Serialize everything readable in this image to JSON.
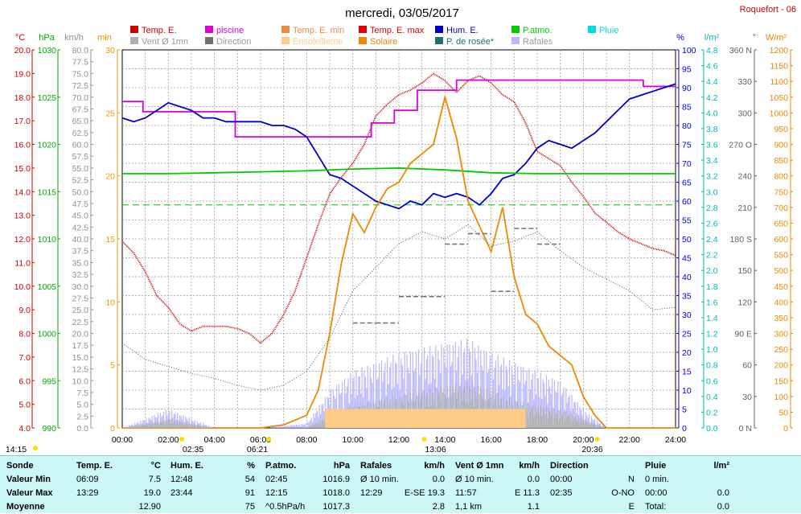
{
  "title": "mercredi, 03/05/2017",
  "station": "Roquefort - 06",
  "legend": [
    {
      "label": "Temp. E.",
      "color": "#cc0000"
    },
    {
      "label": "piscine",
      "color": "#dd00dd"
    },
    {
      "label": "Temp. E. min",
      "color": "#ee8844"
    },
    {
      "label": "Temp. E. max",
      "color": "#dd0000"
    },
    {
      "label": "Hum. E.",
      "color": "#0000cc"
    },
    {
      "label": "P.atmo.",
      "color": "#00cc00"
    },
    {
      "label": "Pluie",
      "color": "#00dddd"
    },
    {
      "label": "Vent Ø 1mn",
      "color": "#b0b0b0"
    },
    {
      "label": "Direction",
      "color": "#707070"
    },
    {
      "label": "Ensoleilleme",
      "color": "#ffcc88"
    },
    {
      "label": "Solaire",
      "color": "#ee8800"
    },
    {
      "label": "P. de rosée*",
      "color": "#207070"
    },
    {
      "label": "Rafales",
      "color": "#b8b8ff"
    }
  ],
  "axes_units": {
    "temp": "°C",
    "pressure": "hPa",
    "wind": "km/h",
    "minutes": "min",
    "humidity": "%",
    "rain": "l/m²",
    "direction": "°",
    "solar": "W/m²"
  },
  "axes_ticks": {
    "temp": [
      "4.0",
      "5.0",
      "6.0",
      "7.0",
      "8.0",
      "9.0",
      "10.0",
      "11.0",
      "12.0",
      "13.0",
      "14.0",
      "15.0",
      "16.0",
      "17.0",
      "18.0",
      "19.0",
      "20.0"
    ],
    "pressure": [
      "990",
      "995",
      "1000",
      "1005",
      "1010",
      "1015",
      "1020",
      "1025",
      "1030"
    ],
    "wind": [
      "0.0",
      "2.5",
      "5.0",
      "7.5",
      "10.0",
      "12.5",
      "15.0",
      "17.5",
      "20.0",
      "22.5",
      "25.0",
      "27.5",
      "30.0",
      "32.5",
      "35.0",
      "37.5",
      "40.0",
      "42.5",
      "45.0",
      "47.5",
      "50.0",
      "52.5",
      "55.0",
      "57.5",
      "60.0",
      "62.5",
      "65.0",
      "67.5",
      "70.0",
      "72.5",
      "75.0",
      "77.5",
      "80.0"
    ],
    "minutes": [
      "0",
      "5",
      "10",
      "15",
      "20",
      "25",
      "30"
    ],
    "humidity": [
      "0",
      "5",
      "10",
      "15",
      "20",
      "25",
      "30",
      "35",
      "40",
      "45",
      "50",
      "55",
      "60",
      "65",
      "70",
      "75",
      "80",
      "85",
      "90",
      "95",
      "100"
    ],
    "rain": [
      "0.0",
      "0.2",
      "0.4",
      "0.6",
      "0.8",
      "1.0",
      "1.2",
      "1.4",
      "1.6",
      "1.8",
      "2.0",
      "2.2",
      "2.4",
      "2.6",
      "2.8",
      "3.0",
      "3.2",
      "3.4",
      "3.6",
      "3.8",
      "4.0",
      "4.2",
      "4.4",
      "4.6",
      "4.8"
    ],
    "direction": [
      "0 N",
      "30",
      "60",
      "90 E",
      "120",
      "150",
      "180 S",
      "210",
      "240",
      "270 O",
      "300",
      "330",
      "360 N"
    ],
    "solar": [
      "0",
      "50",
      "100",
      "150",
      "200",
      "250",
      "300",
      "350",
      "400",
      "450",
      "500",
      "550",
      "600",
      "650",
      "700",
      "750",
      "800",
      "850",
      "900",
      "950",
      "1000",
      "1050",
      "1100",
      "1150",
      "1200"
    ],
    "time": [
      "00:00",
      "02:00",
      "04:00",
      "06:00",
      "08:00",
      "10:00",
      "12:00",
      "14:00",
      "16:00",
      "18:00",
      "20:00",
      "22:00",
      "24:00"
    ]
  },
  "time_markers": {
    "start": "14:15",
    "moonset": "02:35",
    "sunrise": "06:21",
    "noon": "13:06",
    "sunset": "20:36"
  },
  "chart_data": {
    "type": "line",
    "x_range": [
      "00:00",
      "24:00"
    ],
    "grid": true,
    "series": [
      {
        "name": "Temp. E.",
        "unit": "°C",
        "x": [
          0,
          0.5,
          1,
          1.5,
          2,
          2.5,
          3,
          3.5,
          4,
          4.5,
          5,
          5.5,
          6,
          6.5,
          7,
          7.5,
          8,
          8.5,
          9,
          9.5,
          10,
          10.5,
          11,
          11.5,
          12,
          12.5,
          13,
          13.5,
          14,
          14.5,
          15,
          15.5,
          16,
          16.5,
          17,
          17.5,
          18,
          18.5,
          19,
          19.5,
          20,
          20.5,
          21,
          21.5,
          22,
          22.5,
          23,
          23.5,
          24
        ],
        "y": [
          11.9,
          11.4,
          10.6,
          9.6,
          9.1,
          8.4,
          8.1,
          8.3,
          8.3,
          8.3,
          8.2,
          8.0,
          7.6,
          8.0,
          8.8,
          9.8,
          11.2,
          12.6,
          13.9,
          14.6,
          15.2,
          16.0,
          17.2,
          17.7,
          18.1,
          18.3,
          18.6,
          19.0,
          18.7,
          18.2,
          18.7,
          18.9,
          18.6,
          18.1,
          17.8,
          16.9,
          15.7,
          15.4,
          15.1,
          14.4,
          13.8,
          13.1,
          12.7,
          12.3,
          12.0,
          11.8,
          11.6,
          11.5,
          11.3
        ]
      },
      {
        "name": "piscine",
        "unit": "°C",
        "x": [
          0,
          0.9,
          0.9,
          4.9,
          4.9,
          10.8,
          10.8,
          11.8,
          11.8,
          12.8,
          12.8,
          14.5,
          14.5,
          22.6,
          22.6,
          24
        ],
        "y": [
          25.9,
          25.9,
          25.1,
          25.1,
          23.1,
          23.1,
          24.2,
          24.2,
          25.2,
          25.2,
          26.8,
          26.8,
          27.6,
          27.6,
          27.1,
          27.1
        ]
      },
      {
        "name": "Hum. E.",
        "unit": "%",
        "x": [
          0,
          0.5,
          1,
          1.5,
          2,
          2.5,
          3,
          3.5,
          4,
          4.5,
          5,
          5.5,
          6,
          6.5,
          7,
          7.5,
          8,
          8.5,
          9,
          9.5,
          10,
          10.5,
          11,
          11.5,
          12,
          12.5,
          13,
          13.5,
          14,
          14.5,
          15,
          15.5,
          16,
          16.5,
          17,
          17.5,
          18,
          18.5,
          19,
          19.5,
          20,
          20.5,
          21,
          21.5,
          22,
          22.5,
          23,
          23.5,
          24
        ],
        "y": [
          82,
          81,
          82,
          84,
          86,
          85,
          84,
          82,
          82,
          81,
          81,
          81,
          81,
          80,
          80,
          79,
          77,
          72,
          67,
          66,
          64,
          62,
          60,
          59,
          58,
          60,
          59,
          62,
          61,
          62,
          61,
          59,
          62,
          66,
          67,
          70,
          74,
          76,
          75,
          74,
          76,
          78,
          81,
          84,
          87,
          88,
          89,
          90,
          91
        ]
      },
      {
        "name": "P.atmo.",
        "unit": "hPa",
        "x": [
          0,
          2,
          4,
          6,
          8,
          10,
          12,
          14,
          16,
          18,
          20,
          22,
          24
        ],
        "y": [
          1016.9,
          1016.9,
          1017.0,
          1017.1,
          1017.2,
          1017.4,
          1017.5,
          1017.3,
          1017.0,
          1016.9,
          1016.9,
          1016.9,
          1016.9
        ]
      },
      {
        "name": "Solaire",
        "unit": "W/m²",
        "x": [
          0,
          6,
          7,
          8,
          8.5,
          9,
          9.5,
          10,
          10.5,
          11,
          11.5,
          12,
          12.5,
          13,
          13.5,
          14,
          14.5,
          15,
          15.5,
          16,
          16.5,
          17,
          17.5,
          18,
          18.5,
          19,
          19.5,
          20,
          20.5,
          21,
          24
        ],
        "y": [
          0,
          0,
          10,
          40,
          120,
          300,
          520,
          680,
          620,
          700,
          760,
          780,
          840,
          870,
          900,
          1050,
          920,
          720,
          640,
          560,
          700,
          480,
          360,
          330,
          260,
          230,
          200,
          100,
          40,
          0,
          0
        ]
      },
      {
        "name": "P. de rosée*",
        "unit": "°C",
        "x": [
          0,
          1,
          2,
          3,
          4,
          5,
          6,
          7,
          8,
          9,
          10,
          11,
          12,
          13,
          14,
          15,
          16,
          17,
          18,
          19,
          20,
          21,
          22,
          23,
          24
        ],
        "y": [
          7.6,
          6.9,
          6.6,
          6.3,
          6.1,
          5.8,
          5.6,
          5.8,
          6.4,
          7.8,
          9.8,
          10.8,
          11.8,
          12.3,
          12.0,
          12.6,
          11.7,
          11.9,
          12.3,
          11.5,
          10.8,
          10.3,
          9.8,
          9.0,
          9.1
        ]
      },
      {
        "name": "Rafales",
        "unit": "km/h",
        "x": [
          0,
          2,
          4,
          6,
          8,
          9,
          10,
          11,
          12,
          13,
          14,
          15,
          16,
          17,
          18,
          19,
          20,
          21,
          24
        ],
        "y": [
          0,
          4,
          0,
          0,
          1,
          8,
          12,
          14,
          16,
          17,
          18,
          19,
          16,
          14,
          12,
          10,
          4,
          0,
          0
        ]
      },
      {
        "name": "Vent Ø 1mn",
        "unit": "km/h",
        "x": [
          0,
          2,
          4,
          6,
          8,
          9,
          10,
          11,
          12,
          13,
          14,
          15,
          16,
          17,
          18,
          19,
          20,
          21,
          24
        ],
        "y": [
          0,
          2,
          0,
          0,
          0,
          3,
          5,
          6,
          7,
          8,
          9,
          10,
          8,
          6,
          5,
          4,
          2,
          0,
          0
        ]
      },
      {
        "name": "Direction",
        "unit": "°",
        "x": [
          10,
          11,
          12,
          13,
          14,
          15,
          16,
          17,
          18
        ],
        "y": [
          100,
          100,
          125,
          125,
          175,
          185,
          130,
          190,
          175
        ]
      },
      {
        "name": "Ensoleilleme",
        "unit": "min",
        "x": [
          8.8,
          17.5
        ],
        "y": [
          1.5,
          1.5
        ]
      }
    ],
    "reference_lines": [
      {
        "name": "P.atmo. moyenne",
        "value": 1013.6,
        "unit": "hPa",
        "style": "dashed"
      }
    ]
  },
  "stats": {
    "sonde": {
      "title": "Sonde",
      "rows": [
        "Valeur Min",
        "Valeur Max",
        "Moyenne"
      ]
    },
    "temp": {
      "title": "Temp. E.",
      "unit": "°C",
      "rows": [
        [
          "06:09",
          "7.5"
        ],
        [
          "13:29",
          "19.0"
        ],
        [
          "",
          "12.90"
        ]
      ]
    },
    "hum": {
      "title": "Hum. E.",
      "unit": "%",
      "rows": [
        [
          "12:48",
          "54"
        ],
        [
          "23:44",
          "91"
        ],
        [
          "",
          "75"
        ]
      ]
    },
    "patmo": {
      "title": "P.atmo.",
      "unit": "hPa",
      "rows": [
        [
          "02:45",
          "1016.9"
        ],
        [
          "12:15",
          "1018.0"
        ],
        [
          "^0.5hPa/h",
          "1017.3"
        ]
      ]
    },
    "rafales": {
      "title": "Rafales",
      "unit": "km/h",
      "rows": [
        [
          "Ø 10 min.",
          "0.0"
        ],
        [
          "12:29",
          "E-SE 19.3"
        ],
        [
          "",
          "2.8"
        ]
      ]
    },
    "vent": {
      "title": "Vent Ø 1mn",
      "unit": "km/h",
      "rows": [
        [
          "Ø 10 min.",
          "0.0"
        ],
        [
          "11:57",
          "E 11.3"
        ],
        [
          "1,1 km",
          "1.1"
        ]
      ]
    },
    "dir": {
      "title": "Direction",
      "unit": "",
      "rows": [
        [
          "00:00",
          "N"
        ],
        [
          "02:35",
          "O-NO"
        ],
        [
          "",
          "E"
        ]
      ]
    },
    "pluie": {
      "title": "Pluie",
      "unit": "l/m²",
      "rows": [
        [
          "0 min.",
          ""
        ],
        [
          "00:00",
          "0.0"
        ],
        [
          "Total:",
          "0.0"
        ]
      ]
    }
  }
}
